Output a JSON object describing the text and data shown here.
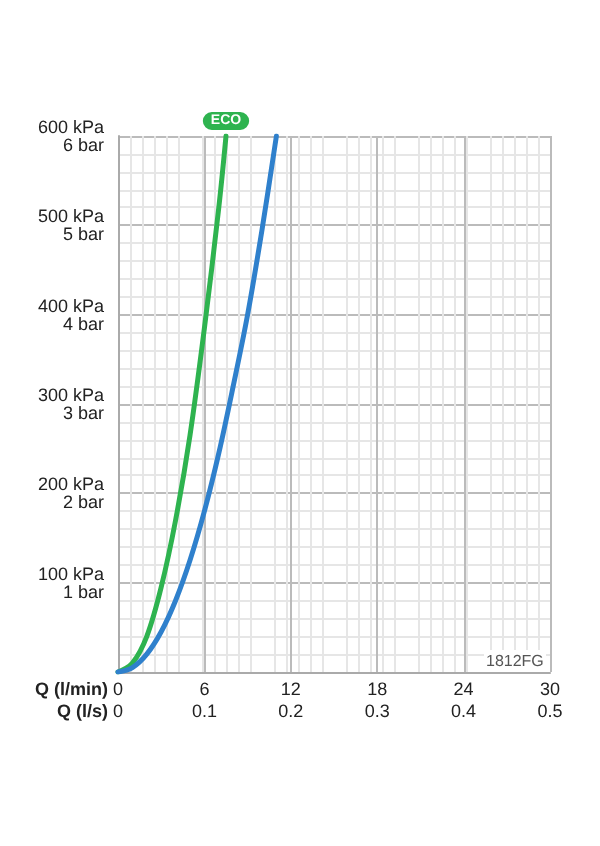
{
  "chart_data": {
    "type": "line",
    "xlabel": "Q (l/min)",
    "x2label": "Q (l/s)",
    "xlim": [
      0,
      30
    ],
    "xticks": [
      0,
      6,
      12,
      18,
      24,
      30
    ],
    "x2lim": [
      0,
      0.5
    ],
    "x2ticks": [
      0,
      0.1,
      0.2,
      0.3,
      0.4,
      0.5
    ],
    "ylim": [
      0,
      600
    ],
    "yticks": [
      {
        "value": 0,
        "label": null
      },
      {
        "value": 100,
        "label": "100 kPa"
      },
      {
        "value": 200,
        "label": "200 kPa"
      },
      {
        "value": 300,
        "label": "300 kPa"
      },
      {
        "value": 400,
        "label": "400 kPa"
      },
      {
        "value": 500,
        "label": "500 kPa"
      },
      {
        "value": 600,
        "label": "600 kPa"
      }
    ],
    "y2lim": [
      0,
      6
    ],
    "y2ticks": [
      {
        "value": 0,
        "label": null
      },
      {
        "value": 1,
        "label": "1 bar"
      },
      {
        "value": 2,
        "label": "2 bar"
      },
      {
        "value": 3,
        "label": "3 bar"
      },
      {
        "value": 4,
        "label": "4 bar"
      },
      {
        "value": 5,
        "label": "5 bar"
      },
      {
        "value": 6,
        "label": "6 bar"
      }
    ],
    "grid": true,
    "legend": false,
    "marker": "none",
    "line_style": "solid",
    "series": [
      {
        "name": "ECO",
        "color": "#2eb34f",
        "x": [
          0,
          1,
          2,
          3,
          4,
          5,
          6,
          7,
          7.5
        ],
        "values": [
          0,
          10,
          40,
          95,
          170,
          265,
          385,
          520,
          600
        ]
      },
      {
        "color": "#2f80cc",
        "x": [
          0,
          1,
          2,
          3,
          4,
          5,
          6,
          7,
          8,
          9,
          10,
          11
        ],
        "values": [
          0,
          5,
          20,
          45,
          80,
          125,
          180,
          245,
          320,
          400,
          495,
          600
        ]
      }
    ],
    "annotations": [
      "1812FG"
    ]
  }
}
